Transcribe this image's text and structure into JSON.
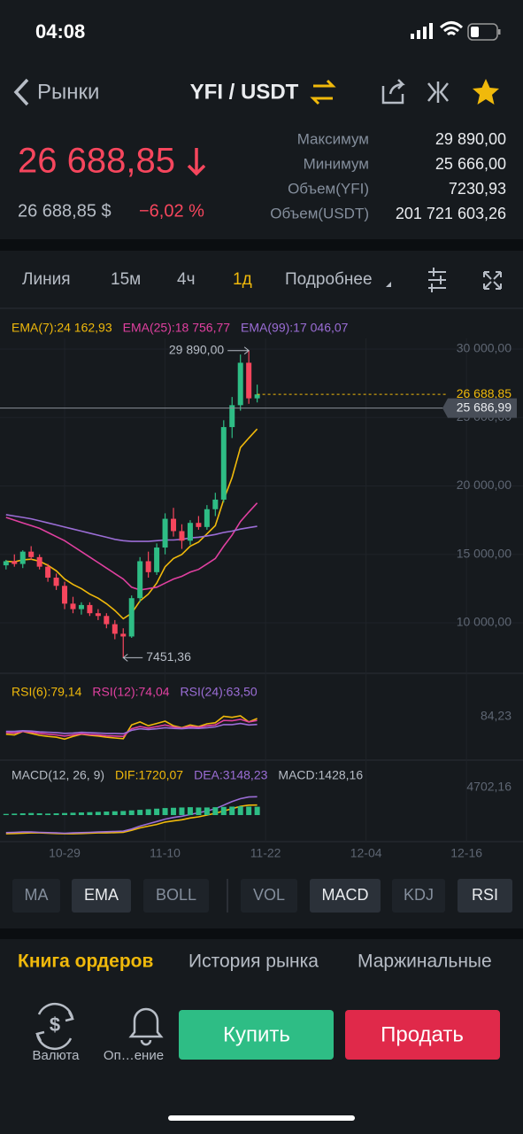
{
  "status": {
    "time": "04:08"
  },
  "nav": {
    "back": "Рынки",
    "pair": "YFI / USDT"
  },
  "ticker": {
    "price": "26 688,85",
    "price_usd": "26 688,85 $",
    "change": "−6,02 %",
    "stats": [
      {
        "label": "Максимум",
        "value": "29 890,00"
      },
      {
        "label": "Минимум",
        "value": "25 666,00"
      },
      {
        "label": "Объем(YFI)",
        "value": "7230,93"
      },
      {
        "label": "Объем(USDT)",
        "value": "201 721 603,26"
      }
    ]
  },
  "toolbar": {
    "items": [
      "Линия",
      "15м",
      "4ч",
      "1д",
      "Подробнее"
    ],
    "active": 3
  },
  "chart_data": [
    {
      "type": "candlestick",
      "open": [
        14200,
        14500,
        14300,
        15200,
        14800,
        14100,
        13300,
        12700,
        11400,
        11000,
        11300,
        10700,
        10500,
        9900,
        9200,
        9000,
        11800,
        14500,
        13700,
        15500,
        17600,
        16700,
        16000,
        17300,
        17000,
        18300,
        19000,
        24300,
        25900,
        29000,
        26400
      ],
      "high": [
        14600,
        15000,
        15300,
        15600,
        15000,
        14300,
        13600,
        13000,
        11900,
        11500,
        11500,
        11000,
        10700,
        10200,
        9600,
        12000,
        14800,
        15200,
        15800,
        18000,
        18400,
        17200,
        17500,
        17800,
        18600,
        19500,
        24800,
        26500,
        29600,
        29890,
        27400
      ],
      "low": [
        13900,
        14100,
        14000,
        14600,
        13900,
        13000,
        12400,
        11000,
        10700,
        10600,
        10500,
        10200,
        9600,
        8800,
        7451.36,
        8900,
        11500,
        13300,
        13500,
        15000,
        16300,
        15400,
        15700,
        16800,
        16800,
        17800,
        18800,
        23500,
        25500,
        26000,
        26100
      ],
      "close": [
        14500,
        14300,
        15200,
        14800,
        14100,
        13300,
        12700,
        11400,
        11000,
        11300,
        10700,
        10500,
        9900,
        9200,
        9000,
        11800,
        14500,
        13700,
        15500,
        17600,
        16700,
        16000,
        17300,
        17000,
        18300,
        19000,
        24300,
        25900,
        29000,
        26400,
        26688.85
      ],
      "up_color": "#2ebd85",
      "down_color": "#f6465d",
      "series": [
        {
          "name": "EMA(7):24 162,93",
          "color": "#f0b90b",
          "values": [
            14500,
            14450,
            14600,
            14650,
            14500,
            14200,
            13800,
            13200,
            12800,
            12500,
            12100,
            11800,
            11400,
            10900,
            10300,
            10700,
            11600,
            12100,
            12900,
            14100,
            14700,
            15000,
            15600,
            15900,
            16500,
            17100,
            19000,
            20600,
            22800,
            23500,
            24162.93
          ]
        },
        {
          "name": "EMA(25):18 756,77",
          "color": "#e040a0",
          "values": [
            17700,
            17500,
            17300,
            17100,
            16900,
            16600,
            16300,
            16000,
            15600,
            15200,
            14800,
            14400,
            14000,
            13600,
            13200,
            12600,
            12400,
            12500,
            12600,
            12900,
            13200,
            13400,
            13700,
            13900,
            14300,
            14700,
            15600,
            16400,
            17400,
            18100,
            18756.77
          ]
        },
        {
          "name": "EMA(99):17 046,07",
          "color": "#9b6dd6",
          "values": [
            17900,
            17800,
            17700,
            17600,
            17450,
            17300,
            17150,
            17000,
            16850,
            16700,
            16550,
            16400,
            16250,
            16100,
            16000,
            15950,
            15950,
            15950,
            16000,
            16050,
            16050,
            16100,
            16200,
            16250,
            16350,
            16450,
            16600,
            16700,
            16850,
            16950,
            17046.07
          ]
        }
      ],
      "xlim": [
        -0.72,
        61.75
      ],
      "xticks": [
        {
          "value": 7,
          "label": "10-29"
        },
        {
          "value": 19,
          "label": "11-10"
        },
        {
          "value": 31,
          "label": "11-22"
        },
        {
          "value": 43,
          "label": "12-04"
        },
        {
          "value": 55,
          "label": "12-16"
        }
      ],
      "ylim": [
        6440,
        30777
      ],
      "yticks": [
        {
          "value": 30000,
          "label": "30 000,00"
        },
        {
          "value": 25000,
          "label": "25 000,00"
        },
        {
          "value": 20000,
          "label": "20 000,00"
        },
        {
          "value": 15000,
          "label": "15 000,00"
        },
        {
          "value": 10000,
          "label": "10 000,00"
        }
      ],
      "annotations": [
        {
          "value": 29890,
          "label": "29 890,00"
        },
        {
          "value": 7451.36,
          "label": "7451,36"
        }
      ],
      "price_lines": [
        {
          "value": 26688.85,
          "label": "26 688,85",
          "color": "#f0b90b",
          "style": "dashed"
        },
        {
          "value": 25686.99,
          "label": "25 686,99",
          "color": "#8a8f98",
          "style": "solid"
        }
      ]
    },
    {
      "type": "line",
      "series": [
        {
          "name": "RSI(6):79,14",
          "color": "#f0b90b",
          "values": [
            38,
            36,
            45,
            40,
            35,
            32,
            30,
            25,
            32,
            38,
            35,
            33,
            30,
            28,
            26,
            62,
            70,
            60,
            66,
            72,
            60,
            55,
            62,
            58,
            65,
            68,
            85,
            82,
            86,
            70,
            79.14
          ]
        },
        {
          "name": "RSI(12):74,04",
          "color": "#e040a0",
          "values": [
            42,
            41,
            45,
            43,
            40,
            38,
            36,
            33,
            36,
            39,
            37,
            36,
            34,
            33,
            32,
            52,
            58,
            54,
            58,
            62,
            57,
            54,
            58,
            56,
            60,
            62,
            74,
            73,
            77,
            70,
            74.04
          ]
        },
        {
          "name": "RSI(24):63,50",
          "color": "#9b6dd6",
          "values": [
            45,
            45,
            47,
            46,
            44,
            43,
            42,
            40,
            41,
            43,
            42,
            41,
            40,
            40,
            39,
            48,
            52,
            50,
            52,
            55,
            53,
            52,
            54,
            53,
            55,
            57,
            63,
            63,
            66,
            62,
            63.5
          ]
        }
      ],
      "ylim": [
        0,
        100
      ],
      "yticks": [
        {
          "value": 84.23,
          "label": "84,23"
        }
      ]
    },
    {
      "type": "macd",
      "title": "MACD(12, 26, 9)",
      "series": [
        {
          "name": "DIF:1720,07",
          "color": "#f0b90b",
          "values": [
            -3200,
            -3150,
            -3100,
            -3050,
            -3050,
            -3100,
            -3150,
            -3200,
            -3200,
            -3150,
            -3100,
            -3050,
            -3050,
            -3000,
            -2950,
            -2600,
            -2200,
            -1900,
            -1600,
            -1200,
            -1000,
            -800,
            -500,
            -300,
            0,
            300,
            700,
            1100,
            1500,
            1700,
            1720.07
          ]
        },
        {
          "name": "DEA:3148,23",
          "color": "#9b6dd6",
          "values": [
            -3000,
            -2950,
            -2900,
            -2900,
            -2950,
            -3000,
            -3050,
            -3100,
            -3050,
            -3000,
            -2950,
            -2900,
            -2850,
            -2800,
            -2750,
            -2400,
            -1900,
            -1500,
            -1100,
            -700,
            -400,
            -200,
            100,
            400,
            700,
            1100,
            1700,
            2300,
            2800,
            3100,
            3148.23
          ]
        },
        {
          "name": "MACD:1428,16",
          "color": "#2ebd85",
          "kind": "bar",
          "values": [
            200,
            250,
            300,
            350,
            300,
            250,
            300,
            350,
            400,
            450,
            500,
            550,
            600,
            650,
            700,
            800,
            900,
            1000,
            1100,
            1200,
            1250,
            1300,
            1350,
            1300,
            1300,
            1350,
            1400,
            1450,
            1500,
            1450,
            1428.16
          ]
        }
      ],
      "ylim": [
        -4500,
        4702.16
      ],
      "yticks": [
        {
          "value": 4702.16,
          "label": "4702,16"
        }
      ]
    }
  ],
  "indicators": {
    "main": [
      "MA",
      "EMA",
      "BOLL"
    ],
    "main_active": [
      1
    ],
    "sub": [
      "VOL",
      "MACD",
      "KDJ",
      "RSI"
    ],
    "sub_active": [
      1,
      3
    ]
  },
  "tabs": {
    "items": [
      "Книга ордеров",
      "История рынка",
      "Маржинальные"
    ],
    "active": 0
  },
  "actions": {
    "currency": "Валюта",
    "alerts": "Оп…ение",
    "buy": "Купить",
    "sell": "Продать"
  }
}
